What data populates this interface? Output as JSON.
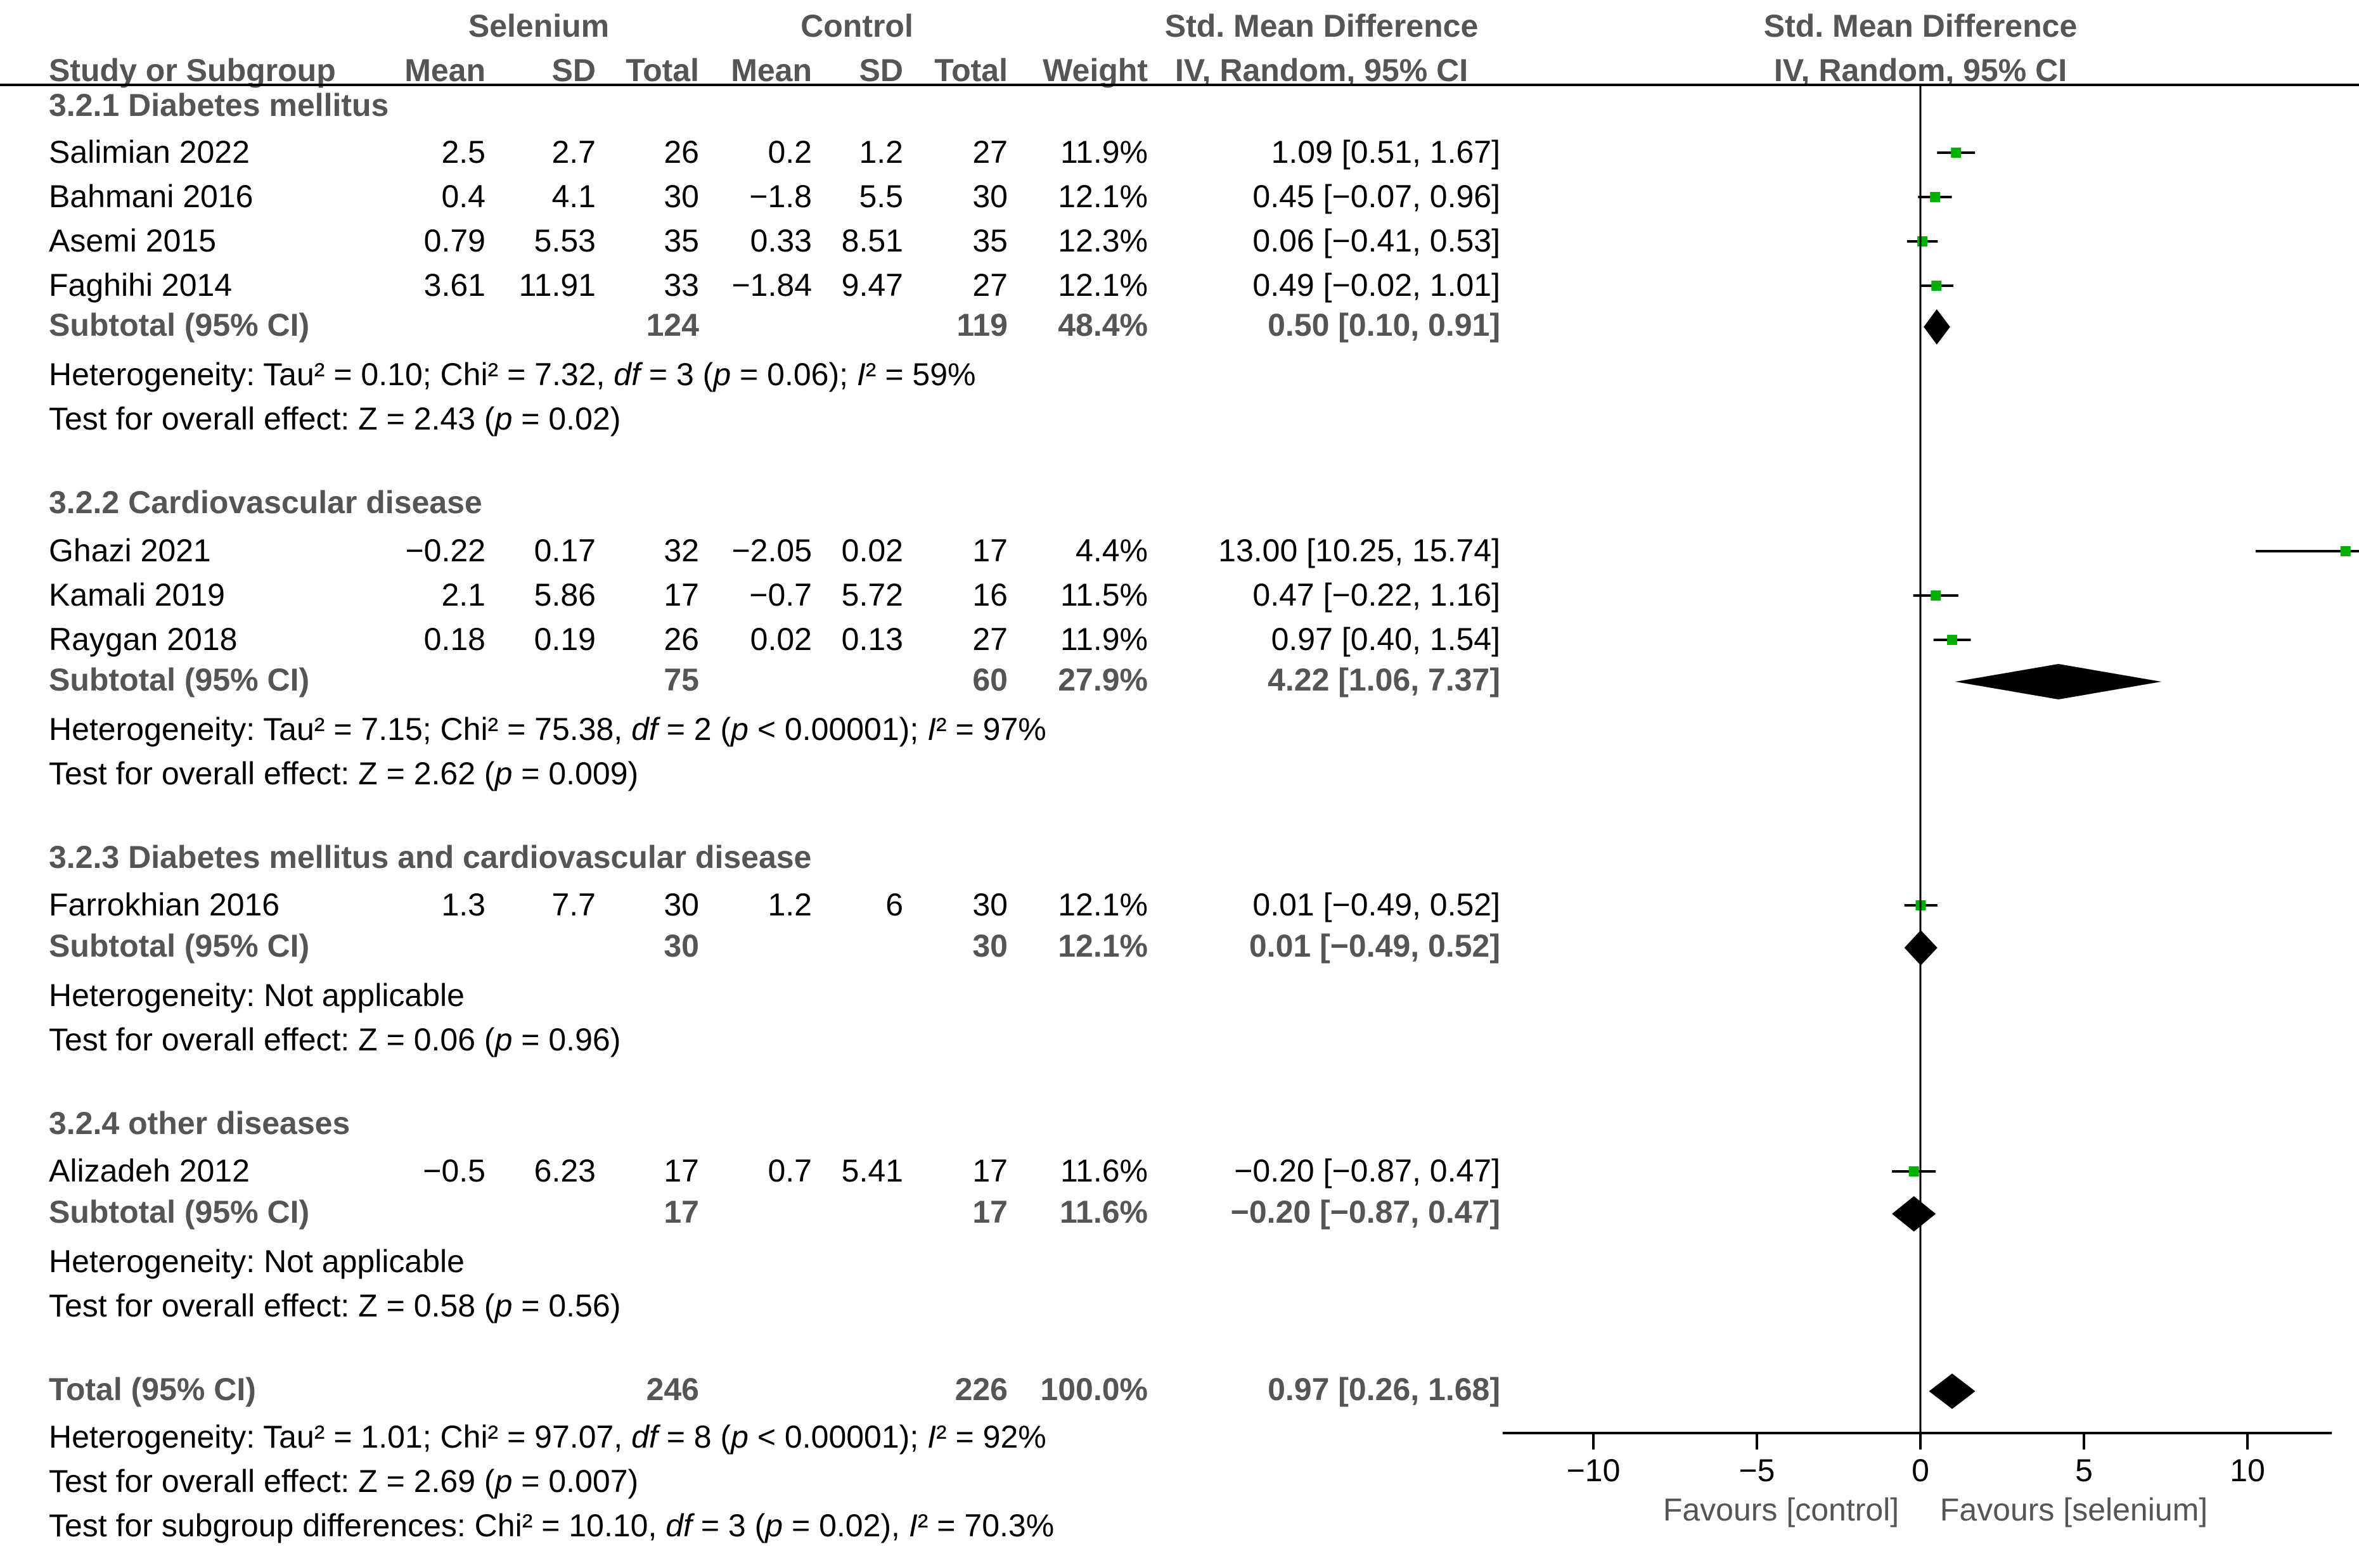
{
  "chart_data": {
    "type": "forest",
    "headers": {
      "group_selenium": "Selenium",
      "group_control": "Control",
      "effect_title": "Std. Mean Difference",
      "effect_method": "IV, Random, 95% CI",
      "plot_title": "Std. Mean Difference",
      "plot_method": "IV, Random, 95% CI",
      "study": "Study or Subgroup",
      "mean1": "Mean",
      "sd1": "SD",
      "total1": "Total",
      "mean2": "Mean",
      "sd2": "SD",
      "total2": "Total",
      "weight": "Weight"
    },
    "subgroups": [
      {
        "title": "3.2.1 Diabetes mellitus",
        "studies": [
          {
            "name": "Salimian 2022",
            "mean1": "2.5",
            "sd1": "2.7",
            "n1": "26",
            "mean2": "0.2",
            "sd2": "1.2",
            "n2": "27",
            "weight": "11.9%",
            "ci": "1.09 [0.51, 1.67]",
            "est": 1.09,
            "lo": 0.51,
            "hi": 1.67
          },
          {
            "name": "Bahmani 2016",
            "mean1": "0.4",
            "sd1": "4.1",
            "n1": "30",
            "mean2": "−1.8",
            "sd2": "5.5",
            "n2": "30",
            "weight": "12.1%",
            "ci": "0.45 [−0.07, 0.96]",
            "est": 0.45,
            "lo": -0.07,
            "hi": 0.96
          },
          {
            "name": "Asemi 2015",
            "mean1": "0.79",
            "sd1": "5.53",
            "n1": "35",
            "mean2": "0.33",
            "sd2": "8.51",
            "n2": "35",
            "weight": "12.3%",
            "ci": "0.06 [−0.41, 0.53]",
            "est": 0.06,
            "lo": -0.41,
            "hi": 0.53
          },
          {
            "name": "Faghihi 2014",
            "mean1": "3.61",
            "sd1": "11.91",
            "n1": "33",
            "mean2": "−1.84",
            "sd2": "9.47",
            "n2": "27",
            "weight": "12.1%",
            "ci": "0.49 [−0.02, 1.01]",
            "est": 0.49,
            "lo": -0.02,
            "hi": 1.01
          }
        ],
        "subtotal": {
          "label": "Subtotal (95% CI)",
          "n1": "124",
          "n2": "119",
          "weight": "48.4%",
          "ci": "0.50 [0.10, 0.91]",
          "est": 0.5,
          "lo": 0.1,
          "hi": 0.91
        },
        "het_parts": [
          "Heterogeneity: Tau² = 0.10; Chi² = 7.32, ",
          "df",
          " = 3 (",
          "p",
          " = 0.06); ",
          "I",
          "² = 59%"
        ],
        "test_parts": [
          "Test for overall effect: Z = 2.43 (",
          "p",
          " = 0.02)"
        ]
      },
      {
        "title": "3.2.2 Cardiovascular disease",
        "studies": [
          {
            "name": "Ghazi 2021",
            "mean1": "−0.22",
            "sd1": "0.17",
            "n1": "32",
            "mean2": "−2.05",
            "sd2": "0.02",
            "n2": "17",
            "weight": "4.4%",
            "ci": "13.00 [10.25, 15.74]",
            "est": 13.0,
            "lo": 10.25,
            "hi": 15.74
          },
          {
            "name": "Kamali 2019",
            "mean1": "2.1",
            "sd1": "5.86",
            "n1": "17",
            "mean2": "−0.7",
            "sd2": "5.72",
            "n2": "16",
            "weight": "11.5%",
            "ci": "0.47 [−0.22, 1.16]",
            "est": 0.47,
            "lo": -0.22,
            "hi": 1.16
          },
          {
            "name": "Raygan 2018",
            "mean1": "0.18",
            "sd1": "0.19",
            "n1": "26",
            "mean2": "0.02",
            "sd2": "0.13",
            "n2": "27",
            "weight": "11.9%",
            "ci": "0.97 [0.40, 1.54]",
            "est": 0.97,
            "lo": 0.4,
            "hi": 1.54
          }
        ],
        "subtotal": {
          "label": "Subtotal (95% CI)",
          "n1": "75",
          "n2": "60",
          "weight": "27.9%",
          "ci": "4.22 [1.06, 7.37]",
          "est": 4.22,
          "lo": 1.06,
          "hi": 7.37
        },
        "het_parts": [
          "Heterogeneity: Tau² = 7.15; Chi² = 75.38, ",
          "df",
          " = 2 (",
          "p",
          " < 0.00001); ",
          "I",
          "² = 97%"
        ],
        "test_parts": [
          "Test for overall effect: Z = 2.62 (",
          "p",
          " = 0.009)"
        ]
      },
      {
        "title": "3.2.3 Diabetes mellitus and cardiovascular disease",
        "studies": [
          {
            "name": "Farrokhian 2016",
            "mean1": "1.3",
            "sd1": "7.7",
            "n1": "30",
            "mean2": "1.2",
            "sd2": "6",
            "n2": "30",
            "weight": "12.1%",
            "ci": "0.01 [−0.49, 0.52]",
            "est": 0.01,
            "lo": -0.49,
            "hi": 0.52
          }
        ],
        "subtotal": {
          "label": "Subtotal (95% CI)",
          "n1": "30",
          "n2": "30",
          "weight": "12.1%",
          "ci": "0.01 [−0.49, 0.52]",
          "est": 0.01,
          "lo": -0.49,
          "hi": 0.52
        },
        "het_parts": [
          "Heterogeneity: Not applicable"
        ],
        "test_parts": [
          "Test for overall effect: Z = 0.06 (",
          "p",
          " = 0.96)"
        ]
      },
      {
        "title": "3.2.4 other diseases",
        "studies": [
          {
            "name": "Alizadeh 2012",
            "mean1": "−0.5",
            "sd1": "6.23",
            "n1": "17",
            "mean2": "0.7",
            "sd2": "5.41",
            "n2": "17",
            "weight": "11.6%",
            "ci": "−0.20 [−0.87, 0.47]",
            "est": -0.2,
            "lo": -0.87,
            "hi": 0.47
          }
        ],
        "subtotal": {
          "label": "Subtotal (95% CI)",
          "n1": "17",
          "n2": "17",
          "weight": "11.6%",
          "ci": "−0.20 [−0.87, 0.47]",
          "est": -0.2,
          "lo": -0.87,
          "hi": 0.47
        },
        "het_parts": [
          "Heterogeneity: Not applicable"
        ],
        "test_parts": [
          "Test for overall effect: Z = 0.58 (",
          "p",
          " = 0.56)"
        ]
      }
    ],
    "total": {
      "label": "Total (95% CI)",
      "n1": "246",
      "n2": "226",
      "weight": "100.0%",
      "ci": "0.97 [0.26, 1.68]",
      "est": 0.97,
      "lo": 0.26,
      "hi": 1.68,
      "het_parts": [
        "Heterogeneity: Tau² = 1.01; Chi² = 97.07, ",
        "df",
        " = 8 (",
        "p",
        " < 0.00001); ",
        "I",
        "² = 92%"
      ],
      "test_parts": [
        "Test for overall effect: Z = 2.69 (",
        "p",
        " = 0.007)"
      ],
      "subgroup_parts": [
        "Test for subgroup differences: Chi² = 10.10, ",
        "df",
        " = 3 (",
        "p",
        " = 0.02), ",
        "I",
        "² = 70.3%"
      ]
    },
    "axis": {
      "xlim": [
        -12,
        12
      ],
      "ticks": [
        -10,
        -5,
        0,
        5,
        10
      ],
      "tick_labels": [
        "−10",
        "−5",
        "0",
        "5",
        "10"
      ],
      "favours_left": "Favours [control]",
      "favours_right": "Favours [selenium]"
    },
    "colors": {
      "text": "#000000",
      "bold_text": "#555555",
      "square": "#00b000",
      "diamond": "#000000",
      "line": "#000000"
    }
  }
}
